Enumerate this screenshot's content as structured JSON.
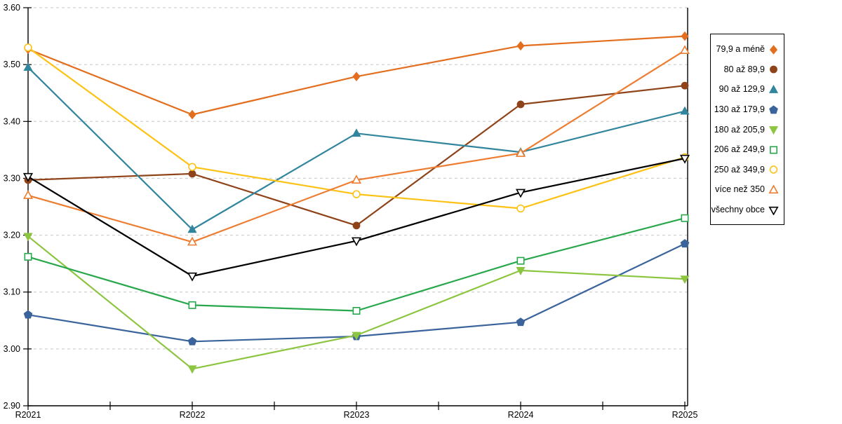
{
  "chart_data": {
    "type": "line",
    "title": "",
    "xlabel": "",
    "ylabel": "",
    "categories": [
      "R2021",
      "R2022",
      "R2023",
      "R2024",
      "R2025"
    ],
    "series": [
      {
        "name": "79,9 a méně",
        "marker": "diamond",
        "fill": "solid",
        "color": "#E36F1E",
        "values": [
          3.527,
          3.412,
          3.479,
          3.533,
          3.55
        ]
      },
      {
        "name": "80 až 89,9",
        "marker": "circle",
        "fill": "solid",
        "color": "#8F4319",
        "values": [
          3.297,
          3.308,
          3.217,
          3.43,
          3.463
        ]
      },
      {
        "name": "90 až 129,9",
        "marker": "triangle-up",
        "fill": "solid",
        "color": "#31859C",
        "values": [
          3.495,
          3.21,
          3.379,
          3.346,
          3.418
        ]
      },
      {
        "name": "130 až 179,9",
        "marker": "pentagon",
        "fill": "solid",
        "color": "#3A649B",
        "values": [
          3.06,
          3.013,
          3.022,
          3.047,
          3.185
        ]
      },
      {
        "name": "180 až 205,9",
        "marker": "triangle-down",
        "fill": "solid",
        "color": "#8CC540",
        "values": [
          3.198,
          2.965,
          3.024,
          3.138,
          3.123
        ]
      },
      {
        "name": "206 až 249,9",
        "marker": "square",
        "fill": "open",
        "color": "#29A74C",
        "values": [
          3.162,
          3.077,
          3.067,
          3.155,
          3.23
        ]
      },
      {
        "name": "250 až 349,9",
        "marker": "circle",
        "fill": "open",
        "color": "#FDC216",
        "values": [
          3.53,
          3.32,
          3.272,
          3.247,
          3.337
        ]
      },
      {
        "name": "více než 350",
        "marker": "triangle-up",
        "fill": "open",
        "color": "#ED7D31",
        "values": [
          3.27,
          3.188,
          3.297,
          3.344,
          3.525
        ]
      },
      {
        "name": "všechny obce",
        "marker": "triangle-down",
        "fill": "open",
        "color": "#000000",
        "values": [
          3.303,
          3.128,
          3.19,
          3.275,
          3.335
        ]
      }
    ],
    "ylim": [
      2.9,
      3.6
    ],
    "ytick_step": 0.1,
    "ytick_labels": [
      "3.60",
      "3.50",
      "3.40",
      "3.30",
      "3.20",
      "3.10",
      "3.00",
      "2.90"
    ],
    "grid": "horizontal-dashed",
    "gridline_color": "#C6C6C6",
    "axis_color": "#000000",
    "legend_position": "right"
  }
}
